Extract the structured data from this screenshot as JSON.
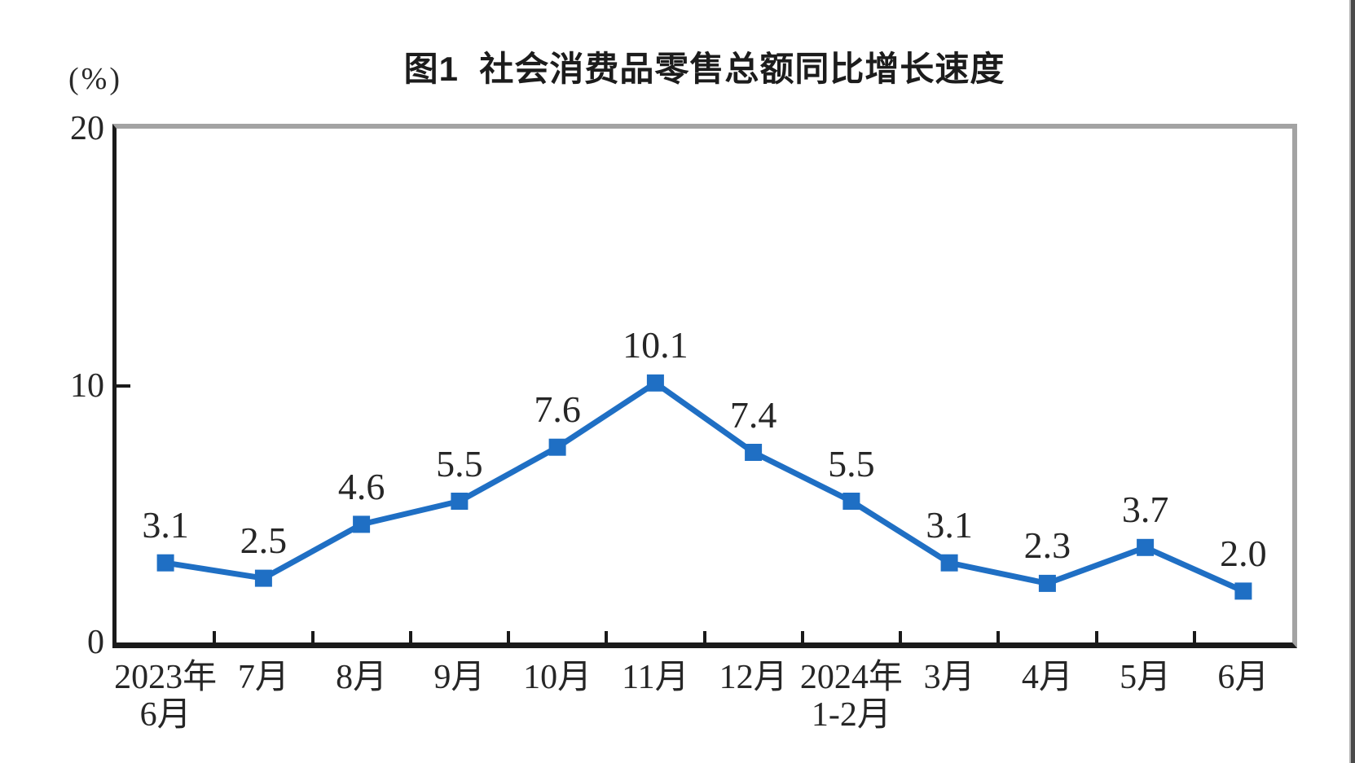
{
  "chart_data": {
    "type": "line",
    "title": "图1  社会消费品零售总额同比增长速度",
    "unit": "(%)",
    "categories": [
      "2023年\n6月",
      "7月",
      "8月",
      "9月",
      "10月",
      "11月",
      "12月",
      "2024年\n1-2月",
      "3月",
      "4月",
      "5月",
      "6月"
    ],
    "values": [
      3.1,
      2.5,
      4.6,
      5.5,
      7.6,
      10.1,
      7.4,
      5.5,
      3.1,
      2.3,
      3.7,
      2.0
    ],
    "xlabel": "",
    "ylabel": "",
    "ylim": [
      0,
      20
    ],
    "yticks": [
      0,
      10,
      20
    ],
    "grid": false,
    "legend": "none",
    "data_labels": true,
    "marker": "square",
    "colors": {
      "line": "#1f6fc4",
      "axis": "#1a1a1a",
      "plot_border": "#a3a3a3",
      "text": "#262626"
    }
  }
}
